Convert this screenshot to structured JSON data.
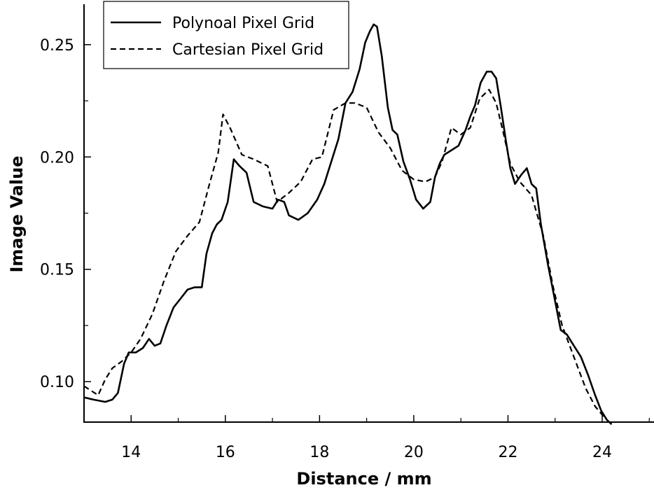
{
  "chart_data": {
    "type": "line",
    "xlabel": "Distance / mm",
    "ylabel": "Image Value",
    "xlim": [
      13.0,
      25.1
    ],
    "ylim": [
      0.082,
      0.268
    ],
    "x_ticks": [
      14,
      16,
      18,
      20,
      22,
      24
    ],
    "x_tick_labels": [
      "14",
      "16",
      "18",
      "20",
      "22",
      "24"
    ],
    "x_minor_ticks": [
      15,
      17,
      19,
      21,
      23,
      25
    ],
    "y_ticks": [
      0.1,
      0.15,
      0.2,
      0.25
    ],
    "y_tick_labels": [
      "0.10",
      "0.15",
      "0.20",
      "0.25"
    ],
    "y_minor_ticks": [
      0.125,
      0.175,
      0.225
    ],
    "legend_position": "top-left",
    "grid": false,
    "series": [
      {
        "name": "Polynoal Pixel Grid",
        "style": "solid",
        "color": "#000000",
        "x": [
          13.0,
          13.2,
          13.45,
          13.6,
          13.72,
          13.85,
          13.95,
          14.1,
          14.25,
          14.38,
          14.5,
          14.62,
          14.75,
          14.9,
          15.05,
          15.2,
          15.35,
          15.5,
          15.6,
          15.72,
          15.82,
          15.92,
          16.05,
          16.18,
          16.3,
          16.45,
          16.6,
          16.8,
          17.0,
          17.12,
          17.25,
          17.35,
          17.55,
          17.75,
          17.95,
          18.1,
          18.25,
          18.4,
          18.55,
          18.7,
          18.85,
          18.97,
          19.07,
          19.15,
          19.22,
          19.32,
          19.45,
          19.55,
          19.65,
          19.78,
          19.92,
          20.05,
          20.2,
          20.35,
          20.45,
          20.55,
          20.65,
          20.8,
          20.95,
          21.1,
          21.2,
          21.3,
          21.42,
          21.55,
          21.65,
          21.75,
          21.85,
          21.95,
          22.05,
          22.15,
          22.28,
          22.4,
          22.5,
          22.6,
          22.7,
          22.85,
          23.0,
          23.12,
          23.25,
          23.4,
          23.55,
          23.7,
          23.85,
          23.98,
          24.1,
          24.2
        ],
        "y": [
          0.093,
          0.092,
          0.091,
          0.092,
          0.095,
          0.108,
          0.113,
          0.113,
          0.115,
          0.119,
          0.116,
          0.117,
          0.125,
          0.133,
          0.137,
          0.141,
          0.142,
          0.142,
          0.157,
          0.166,
          0.17,
          0.172,
          0.18,
          0.199,
          0.196,
          0.193,
          0.18,
          0.178,
          0.177,
          0.181,
          0.18,
          0.174,
          0.172,
          0.175,
          0.181,
          0.188,
          0.198,
          0.208,
          0.224,
          0.229,
          0.239,
          0.251,
          0.256,
          0.259,
          0.258,
          0.245,
          0.222,
          0.212,
          0.21,
          0.198,
          0.19,
          0.181,
          0.177,
          0.18,
          0.191,
          0.197,
          0.201,
          0.203,
          0.205,
          0.212,
          0.218,
          0.223,
          0.233,
          0.238,
          0.238,
          0.235,
          0.222,
          0.208,
          0.195,
          0.188,
          0.192,
          0.195,
          0.188,
          0.186,
          0.17,
          0.152,
          0.136,
          0.123,
          0.121,
          0.116,
          0.111,
          0.103,
          0.094,
          0.087,
          0.083,
          0.081
        ]
      },
      {
        "name": "Cartesian Pixel Grid",
        "style": "dashed",
        "color": "#000000",
        "x": [
          13.0,
          13.15,
          13.3,
          13.45,
          13.6,
          13.8,
          14.0,
          14.2,
          14.45,
          14.7,
          14.95,
          15.2,
          15.45,
          15.65,
          15.85,
          15.95,
          16.1,
          16.35,
          16.6,
          16.9,
          17.1,
          17.35,
          17.6,
          17.85,
          18.05,
          18.3,
          18.55,
          18.75,
          19.0,
          19.25,
          19.5,
          19.75,
          20.0,
          20.25,
          20.45,
          20.6,
          20.8,
          21.0,
          21.2,
          21.4,
          21.6,
          21.75,
          21.9,
          22.05,
          22.25,
          22.5,
          22.75,
          22.95,
          23.15,
          23.4,
          23.65,
          23.85,
          24.05
        ],
        "y": [
          0.098,
          0.096,
          0.094,
          0.101,
          0.106,
          0.109,
          0.113,
          0.119,
          0.13,
          0.145,
          0.158,
          0.165,
          0.171,
          0.187,
          0.202,
          0.219,
          0.213,
          0.201,
          0.199,
          0.196,
          0.18,
          0.184,
          0.189,
          0.199,
          0.2,
          0.221,
          0.224,
          0.224,
          0.222,
          0.211,
          0.204,
          0.194,
          0.19,
          0.189,
          0.191,
          0.198,
          0.213,
          0.21,
          0.213,
          0.226,
          0.23,
          0.224,
          0.211,
          0.197,
          0.189,
          0.183,
          0.165,
          0.143,
          0.125,
          0.111,
          0.097,
          0.089,
          0.084
        ]
      }
    ]
  }
}
